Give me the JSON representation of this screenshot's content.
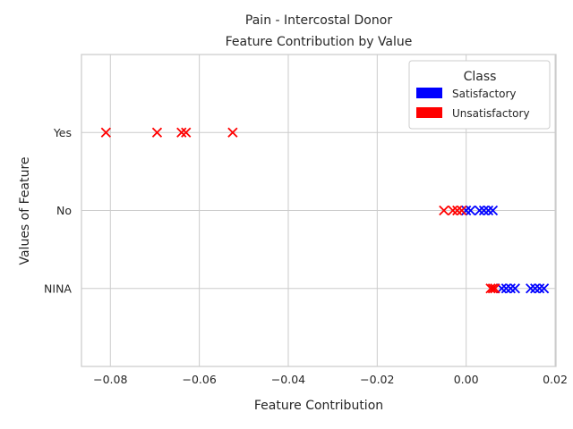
{
  "chart_data": {
    "type": "scatter",
    "title_line1": "Pain - Intercostal Donor",
    "title_line2": "Feature Contribution by Value",
    "xlabel": "Feature Contribution",
    "ylabel": "Values of Feature",
    "xlim": [
      -0.0865,
      0.0202
    ],
    "x_ticks": [
      -0.08,
      -0.06,
      -0.04,
      -0.02,
      0.0,
      0.02
    ],
    "x_tick_labels": [
      "−0.08",
      "−0.06",
      "−0.04",
      "−0.02",
      "0.00",
      "0.02"
    ],
    "categories": [
      "Yes",
      "No",
      "NINA"
    ],
    "grid": true,
    "marker": "x",
    "legend": {
      "title": "Class",
      "placement": "top-right",
      "entries": [
        {
          "label": "Satisfactory",
          "color": "#0000ff"
        },
        {
          "label": "Unsatisfactory",
          "color": "#ff0000"
        }
      ]
    },
    "series": [
      {
        "name": "Satisfactory",
        "color": "#0000ff",
        "points": [
          {
            "category": "No",
            "x": 0.0
          },
          {
            "category": "No",
            "x": 0.001
          },
          {
            "category": "No",
            "x": 0.003
          },
          {
            "category": "No",
            "x": 0.004
          },
          {
            "category": "No",
            "x": 0.005
          },
          {
            "category": "No",
            "x": 0.006
          },
          {
            "category": "NINA",
            "x": 0.008
          },
          {
            "category": "NINA",
            "x": 0.009
          },
          {
            "category": "NINA",
            "x": 0.01
          },
          {
            "category": "NINA",
            "x": 0.011
          },
          {
            "category": "NINA",
            "x": 0.0145
          },
          {
            "category": "NINA",
            "x": 0.0155
          },
          {
            "category": "NINA",
            "x": 0.0165
          },
          {
            "category": "NINA",
            "x": 0.0175
          }
        ]
      },
      {
        "name": "Unsatisfactory",
        "color": "#ff0000",
        "points": [
          {
            "category": "Yes",
            "x": -0.081
          },
          {
            "category": "Yes",
            "x": -0.0695
          },
          {
            "category": "Yes",
            "x": -0.064
          },
          {
            "category": "Yes",
            "x": -0.063
          },
          {
            "category": "Yes",
            "x": -0.0525
          },
          {
            "category": "No",
            "x": -0.005
          },
          {
            "category": "No",
            "x": -0.003
          },
          {
            "category": "No",
            "x": -0.002
          },
          {
            "category": "No",
            "x": -0.001
          },
          {
            "category": "NINA",
            "x": 0.0055
          },
          {
            "category": "NINA",
            "x": 0.006
          },
          {
            "category": "NINA",
            "x": 0.0065
          }
        ]
      }
    ]
  }
}
